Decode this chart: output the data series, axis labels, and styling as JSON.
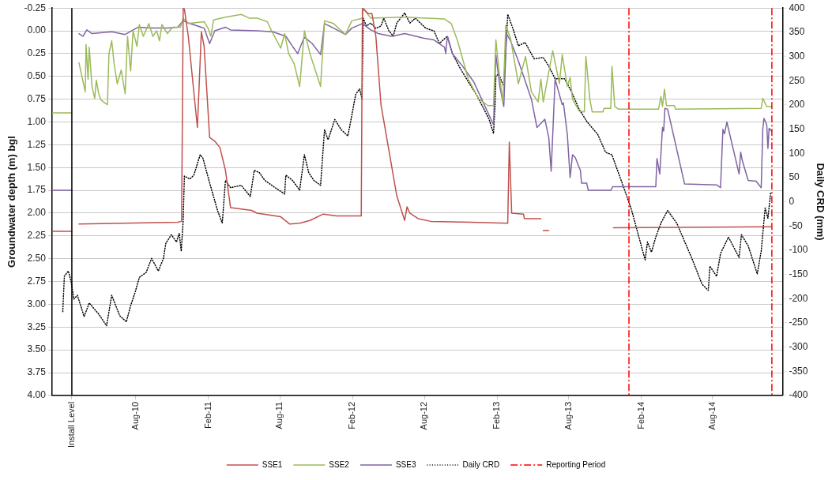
{
  "chart_data": {
    "type": "line",
    "xlabel": null,
    "ylabel": "Groundwater depth (m) bgl",
    "y2label": "Daily CRD (mm)",
    "xlim": [
      "2010-01-01",
      "2015-01-25"
    ],
    "xticks": [
      {
        "value": "2010-02-20",
        "label": "Install Level"
      },
      {
        "value": "2010-08-01",
        "label": "Aug-10"
      },
      {
        "value": "2011-02-01",
        "label": "Feb-11"
      },
      {
        "value": "2011-08-01",
        "label": "Aug-11"
      },
      {
        "value": "2012-02-01",
        "label": "Feb-12"
      },
      {
        "value": "2012-08-01",
        "label": "Aug-12"
      },
      {
        "value": "2013-02-01",
        "label": "Feb-13"
      },
      {
        "value": "2013-08-01",
        "label": "Aug-13"
      },
      {
        "value": "2014-02-01",
        "label": "Feb-14"
      },
      {
        "value": "2014-08-01",
        "label": "Aug-14"
      }
    ],
    "ylim": [
      4,
      -0.25
    ],
    "yticks": [
      {
        "value": -0.25,
        "label": "-0.25"
      },
      {
        "value": 0,
        "label": "0.00"
      },
      {
        "value": 0.25,
        "label": "0.25"
      },
      {
        "value": 0.5,
        "label": "0.50"
      },
      {
        "value": 0.75,
        "label": "0.75"
      },
      {
        "value": 1,
        "label": "1.00"
      },
      {
        "value": 1.25,
        "label": "1.25"
      },
      {
        "value": 1.5,
        "label": "1.50"
      },
      {
        "value": 1.75,
        "label": "1.75"
      },
      {
        "value": 2,
        "label": "2.00"
      },
      {
        "value": 2.25,
        "label": "2.25"
      },
      {
        "value": 2.5,
        "label": "2.50"
      },
      {
        "value": 2.75,
        "label": "2.75"
      },
      {
        "value": 3,
        "label": "3.00"
      },
      {
        "value": 3.25,
        "label": "3.25"
      },
      {
        "value": 3.5,
        "label": "3.50"
      },
      {
        "value": 3.75,
        "label": "3.75"
      },
      {
        "value": 4,
        "label": "4.00"
      }
    ],
    "y2lim": [
      -400,
      400
    ],
    "y2ticks": [
      -400,
      -350,
      -300,
      -250,
      -200,
      -150,
      -100,
      -50,
      0,
      50,
      100,
      150,
      200,
      250,
      300,
      350,
      400
    ],
    "grid": "y",
    "legend": "bottom",
    "marker": "none",
    "ref_lines": [
      {
        "axis": "x",
        "value": "2010-02-20",
        "color": "#000000",
        "line_style": "solid"
      },
      {
        "axis": "x",
        "value": "2014-01-01",
        "label": "Reporting Period",
        "color": "#ff0000",
        "line_style": "dashed"
      },
      {
        "axis": "x",
        "value": "2014-12-29",
        "color": "#ff0000",
        "line_style": "dashed"
      }
    ],
    "series": [
      {
        "name": "SSE1",
        "color": "#c0504d",
        "x": [
          "2010-01-01",
          "2010-02-20",
          "2010-03-01",
          "2010-03-10",
          "2010-11-15",
          "2010-11-25",
          "2010-11-29",
          "2010-12-02",
          "2010-12-12",
          "2010-12-22",
          "2011-01-04",
          "2011-01-14",
          "2011-01-21",
          "2011-02-04",
          "2011-02-17",
          "2011-03-02",
          "2011-03-16",
          "2011-03-29",
          "2011-05-21",
          "2011-06-04",
          "2011-08-03",
          "2011-08-26",
          "2011-09-20",
          "2011-10-16",
          "2011-11-19",
          "2011-12-22",
          "2012-02-23",
          "2012-02-26",
          "2012-03-11",
          "2012-03-21",
          "2012-03-31",
          "2012-04-13",
          "2012-05-03",
          "2012-05-23",
          "2012-06-12",
          "2012-06-18",
          "2012-06-25",
          "2012-07-16",
          "2012-08-17",
          "2012-11-27",
          "2013-02-28",
          "2013-03-04",
          "2013-03-10",
          "2013-04-09",
          "2013-04-11",
          "2013-05-23",
          "2013-05-26",
          "2013-05-29",
          "2013-06-12",
          "2013-09-01",
          "2013-11-23",
          "2014-12-27"
        ],
        "values": [
          2.2,
          2.2,
          null,
          2.12,
          2.1,
          2.09,
          -0.25,
          -0.24,
          0.06,
          0.5,
          1.06,
          0.01,
          0.17,
          1.17,
          1.21,
          1.28,
          1.53,
          1.94,
          1.97,
          2.0,
          2.04,
          2.12,
          2.11,
          2.08,
          2.01,
          2.03,
          2.03,
          -0.25,
          -0.19,
          -0.19,
          0.06,
          0.81,
          1.31,
          1.81,
          2.08,
          1.93,
          2.0,
          2.06,
          2.09,
          2.1,
          2.11,
          1.22,
          2.0,
          2.01,
          2.06,
          2.06,
          null,
          2.19,
          2.19,
          null,
          2.16,
          2.15
        ]
      },
      {
        "name": "SSE2",
        "color": "#9bbb59",
        "x": [
          "2010-01-01",
          "2010-02-20",
          "2010-03-01",
          "2010-03-10",
          "2010-03-26",
          "2010-03-28",
          "2010-04-02",
          "2010-04-05",
          "2010-04-12",
          "2010-04-19",
          "2010-04-23",
          "2010-04-29",
          "2010-05-05",
          "2010-05-21",
          "2010-05-25",
          "2010-06-01",
          "2010-06-07",
          "2010-06-15",
          "2010-06-25",
          "2010-07-05",
          "2010-07-11",
          "2010-07-19",
          "2010-07-25",
          "2010-08-04",
          "2010-08-10",
          "2010-08-20",
          "2010-09-03",
          "2010-09-13",
          "2010-09-23",
          "2010-09-30",
          "2010-10-06",
          "2010-10-20",
          "2010-11-02",
          "2010-11-22",
          "2010-11-29",
          "2010-12-12",
          "2011-01-21",
          "2011-01-31",
          "2011-02-07",
          "2011-02-14",
          "2011-03-16",
          "2011-04-25",
          "2011-05-15",
          "2011-06-04",
          "2011-06-30",
          "2011-07-11",
          "2011-08-03",
          "2011-08-13",
          "2011-08-23",
          "2011-09-06",
          "2011-09-20",
          "2011-10-02",
          "2011-10-16",
          "2011-11-12",
          "2011-11-22",
          "2011-12-15",
          "2012-01-14",
          "2012-01-30",
          "2012-02-26",
          "2012-02-28",
          "2012-03-18",
          "2012-06-12",
          "2012-09-21",
          "2012-10-08",
          "2012-10-24",
          "2012-11-20",
          "2012-12-17",
          "2013-01-09",
          "2013-01-23",
          "2013-01-29",
          "2013-02-08",
          "2013-02-16",
          "2013-02-23",
          "2013-03-07",
          "2013-03-27",
          "2013-04-14",
          "2013-04-29",
          "2013-05-16",
          "2013-05-23",
          "2013-05-29",
          "2013-06-22",
          "2013-07-09",
          "2013-07-16",
          "2013-07-29",
          "2013-08-05",
          "2013-08-11",
          "2013-08-28",
          "2013-09-10",
          "2013-09-14",
          "2013-09-24",
          "2013-09-30",
          "2013-10-27",
          "2013-10-30",
          "2013-11-16",
          "2013-11-19",
          "2013-11-26",
          "2013-12-06",
          "2014-03-17",
          "2014-03-23",
          "2014-03-27",
          "2014-04-01",
          "2014-04-06",
          "2014-04-26",
          "2014-04-29",
          "2014-12-02",
          "2014-12-06",
          "2014-12-16",
          "2014-12-29"
        ],
        "values": [
          0.9,
          0.9,
          null,
          0.35,
          0.67,
          0.15,
          0.53,
          0.18,
          0.61,
          0.74,
          0.54,
          0.69,
          0.76,
          0.81,
          0.25,
          0.11,
          0.36,
          0.58,
          0.43,
          0.69,
          0.06,
          0.44,
          0.0,
          0.17,
          -0.07,
          0.06,
          -0.08,
          0.06,
          0.0,
          0.11,
          -0.07,
          0.03,
          -0.04,
          -0.04,
          -0.14,
          -0.08,
          -0.1,
          -0.03,
          0.06,
          -0.12,
          -0.15,
          -0.18,
          -0.14,
          -0.14,
          -0.1,
          0.0,
          0.19,
          0.03,
          0.25,
          0.36,
          0.61,
          0.0,
          0.25,
          0.61,
          -0.11,
          -0.08,
          0.04,
          -0.11,
          -0.14,
          -0.25,
          -0.14,
          -0.15,
          -0.13,
          -0.08,
          0.11,
          0.53,
          0.75,
          0.82,
          0.82,
          0.1,
          0.53,
          0.78,
          -0.06,
          0.08,
          0.58,
          0.28,
          0.67,
          0.78,
          0.53,
          0.78,
          0.22,
          0.58,
          0.26,
          0.61,
          0.51,
          0.75,
          0.88,
          0.89,
          0.28,
          0.75,
          0.89,
          0.89,
          0.85,
          0.85,
          0.39,
          0.83,
          0.86,
          0.86,
          0.72,
          0.83,
          0.64,
          0.82,
          0.82,
          0.86,
          0.85,
          0.74,
          0.83,
          0.83
        ]
      },
      {
        "name": "SSE3",
        "color": "#8064a2",
        "x": [
          "2010-01-01",
          "2010-02-20",
          "2010-03-01",
          "2010-03-10",
          "2010-03-20",
          "2010-03-30",
          "2010-04-12",
          "2010-06-01",
          "2010-07-05",
          "2010-08-07",
          "2010-09-10",
          "2010-10-20",
          "2010-11-15",
          "2010-11-29",
          "2010-12-16",
          "2011-01-21",
          "2011-02-04",
          "2011-02-17",
          "2011-03-16",
          "2011-03-29",
          "2011-06-04",
          "2011-07-14",
          "2011-08-16",
          "2011-09-02",
          "2011-09-15",
          "2011-09-25",
          "2011-10-02",
          "2011-10-22",
          "2011-11-12",
          "2011-11-22",
          "2011-12-15",
          "2012-01-14",
          "2012-01-30",
          "2012-02-26",
          "2012-03-18",
          "2012-04-06",
          "2012-05-10",
          "2012-06-12",
          "2012-07-29",
          "2012-08-25",
          "2012-09-21",
          "2012-09-24",
          "2012-09-28",
          "2012-10-11",
          "2012-11-06",
          "2012-12-04",
          "2012-12-24",
          "2013-01-23",
          "2013-01-29",
          "2013-02-08",
          "2013-02-18",
          "2013-02-25",
          "2013-03-07",
          "2013-03-27",
          "2013-04-29",
          "2013-05-13",
          "2013-06-02",
          "2013-06-12",
          "2013-06-18",
          "2013-06-28",
          "2013-07-16",
          "2013-07-19",
          "2013-07-29",
          "2013-08-05",
          "2013-08-11",
          "2013-08-18",
          "2013-08-31",
          "2013-09-03",
          "2013-09-16",
          "2013-09-20",
          "2013-11-16",
          "2013-11-21",
          "2014-03-10",
          "2014-03-13",
          "2014-03-20",
          "2014-03-27",
          "2014-03-30",
          "2014-04-02",
          "2014-04-09",
          "2014-05-22",
          "2014-08-11",
          "2014-08-21",
          "2014-08-27",
          "2014-08-31",
          "2014-09-06",
          "2014-10-07",
          "2014-10-11",
          "2014-10-15",
          "2014-10-30",
          "2014-11-19",
          "2014-12-02",
          "2014-12-06",
          "2014-12-09",
          "2014-12-16",
          "2014-12-19",
          "2014-12-22",
          "2014-12-28"
        ],
        "values": [
          1.75,
          1.75,
          null,
          0.03,
          0.06,
          -0.01,
          0.03,
          0.01,
          0.04,
          -0.04,
          -0.03,
          -0.03,
          -0.04,
          -0.11,
          -0.08,
          -0.03,
          0.14,
          0.0,
          -0.04,
          -0.01,
          0.0,
          0.01,
          0.06,
          0.17,
          0.25,
          0.14,
          0.07,
          0.14,
          0.26,
          -0.08,
          -0.03,
          0.04,
          -0.03,
          -0.08,
          -0.01,
          0.03,
          0.06,
          0.03,
          0.08,
          0.1,
          0.18,
          0.25,
          0.06,
          0.25,
          0.39,
          0.56,
          0.75,
          1.03,
          0.26,
          0.61,
          0.83,
          0.03,
          0.11,
          0.33,
          0.75,
          1.06,
          0.97,
          1.17,
          1.54,
          0.53,
          0.81,
          0.79,
          1.14,
          1.61,
          1.36,
          1.39,
          1.53,
          1.67,
          1.67,
          1.75,
          1.75,
          1.71,
          1.71,
          1.4,
          1.57,
          1.06,
          1.1,
          0.85,
          0.86,
          1.68,
          1.69,
          1.72,
          1.08,
          1.13,
          1.0,
          1.57,
          1.33,
          1.42,
          1.64,
          1.65,
          1.72,
          1.08,
          0.96,
          1.03,
          1.29,
          1.07,
          1.1
        ]
      },
      {
        "name": "Daily CRD",
        "color": "#000000",
        "axis": "y2",
        "line_style": "dotted",
        "x": [
          "2010-01-28",
          "2010-02-01",
          "2010-02-11",
          "2010-02-18",
          "2010-02-25",
          "2010-03-06",
          "2010-03-23",
          "2010-04-05",
          "2010-04-29",
          "2010-05-19",
          "2010-06-01",
          "2010-06-21",
          "2010-07-08",
          "2010-07-18",
          "2010-07-31",
          "2010-08-10",
          "2010-08-27",
          "2010-09-10",
          "2010-09-27",
          "2010-10-10",
          "2010-10-16",
          "2010-10-30",
          "2010-11-12",
          "2010-11-19",
          "2010-11-24",
          "2010-11-29",
          "2010-12-02",
          "2010-12-16",
          "2010-12-26",
          "2011-01-11",
          "2011-01-18",
          "2011-02-04",
          "2011-02-24",
          "2011-03-08",
          "2011-03-16",
          "2011-03-29",
          "2011-04-25",
          "2011-05-18",
          "2011-05-28",
          "2011-06-10",
          "2011-06-24",
          "2011-07-20",
          "2011-08-13",
          "2011-08-16",
          "2011-09-02",
          "2011-09-20",
          "2011-10-02",
          "2011-10-13",
          "2011-10-26",
          "2011-11-12",
          "2011-11-22",
          "2011-12-01",
          "2011-12-18",
          "2012-01-03",
          "2012-01-20",
          "2012-01-27",
          "2012-02-09",
          "2012-02-19",
          "2012-02-25",
          "2012-02-28",
          "2012-03-07",
          "2012-03-18",
          "2012-03-31",
          "2012-04-13",
          "2012-04-20",
          "2012-05-03",
          "2012-05-14",
          "2012-05-23",
          "2012-06-12",
          "2012-06-25",
          "2012-07-09",
          "2012-07-22",
          "2012-08-05",
          "2012-08-25",
          "2012-09-08",
          "2012-09-28",
          "2012-10-11",
          "2012-10-31",
          "2012-11-20",
          "2012-12-10",
          "2012-12-30",
          "2013-01-12",
          "2013-01-23",
          "2013-01-27",
          "2013-01-29",
          "2013-02-05",
          "2013-02-18",
          "2013-02-28",
          "2013-03-13",
          "2013-03-27",
          "2013-04-13",
          "2013-04-23",
          "2013-05-06",
          "2013-05-29",
          "2013-06-12",
          "2013-06-28",
          "2013-07-06",
          "2013-07-22",
          "2013-08-08",
          "2013-08-28",
          "2013-09-17",
          "2013-10-14",
          "2013-11-03",
          "2013-11-19",
          "2013-12-03",
          "2013-12-26",
          "2014-01-08",
          "2014-01-15",
          "2014-02-11",
          "2014-02-17",
          "2014-02-27",
          "2014-03-10",
          "2014-03-23",
          "2014-04-09",
          "2014-05-02",
          "2014-06-11",
          "2014-07-05",
          "2014-07-21",
          "2014-07-25",
          "2014-08-11",
          "2014-08-21",
          "2014-09-10",
          "2014-10-07",
          "2014-10-13",
          "2014-10-30",
          "2014-11-22",
          "2014-12-02",
          "2014-12-12",
          "2014-12-19",
          "2014-12-26"
        ],
        "values": [
          -227,
          -154,
          -143,
          -164,
          -201,
          -193,
          -237,
          -209,
          -232,
          -256,
          -193,
          -235,
          -248,
          -217,
          -185,
          -156,
          -146,
          -117,
          -143,
          -117,
          -86,
          -68,
          -83,
          -65,
          -102,
          -39,
          53,
          47,
          55,
          97,
          90,
          39,
          -18,
          -44,
          44,
          29,
          34,
          11,
          65,
          60,
          44,
          29,
          16,
          55,
          44,
          24,
          97,
          60,
          44,
          34,
          149,
          128,
          170,
          149,
          136,
          165,
          222,
          233,
          212,
          379,
          363,
          369,
          358,
          363,
          379,
          353,
          342,
          369,
          390,
          369,
          379,
          369,
          358,
          353,
          327,
          342,
          306,
          275,
          248,
          222,
          191,
          170,
          141,
          201,
          259,
          264,
          238,
          387,
          358,
          322,
          329,
          314,
          295,
          298,
          280,
          254,
          254,
          254,
          228,
          191,
          165,
          139,
          102,
          97,
          65,
          13,
          -18,
          -39,
          -120,
          -83,
          -104,
          -73,
          -44,
          -18,
          -44,
          -120,
          -170,
          -183,
          -133,
          -154,
          -107,
          -73,
          -115,
          -68,
          -91,
          -149,
          -102,
          -13,
          -34,
          19
        ]
      }
    ]
  }
}
